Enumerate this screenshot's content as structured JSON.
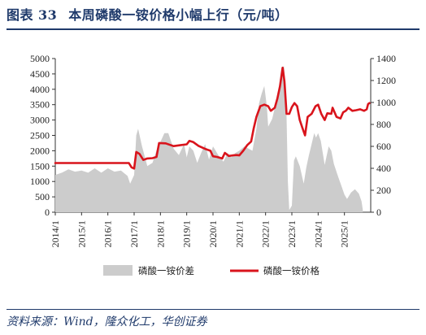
{
  "figure": {
    "label": "图表",
    "number": "33",
    "title": "本周磷酸一铵价格小幅上行（元/吨）"
  },
  "source": "资料来源：Wind，隆众化工，华创证券",
  "chart_data": {
    "type": "area",
    "title": "本周磷酸一铵价格小幅上行（元/吨）",
    "y_left": {
      "min": 0,
      "max": 5000,
      "ticks": [
        "0",
        "500",
        "1000",
        "1500",
        "2000",
        "2500",
        "3000",
        "3500",
        "4000",
        "4500",
        "5000"
      ]
    },
    "y_right": {
      "min": 0,
      "max": 1400,
      "ticks": [
        "0",
        "200",
        "400",
        "600",
        "800",
        "1000",
        "1200",
        "1400"
      ]
    },
    "x_ticks": [
      "2014/1",
      "2015/1",
      "2016/1",
      "2017/1",
      "2018/1",
      "2019/1",
      "2020/1",
      "2021/1",
      "2022/1",
      "2023/1",
      "2024/1",
      "2025/1"
    ],
    "x_range": [
      2014.0,
      2026.0
    ],
    "legend_position": "bottom",
    "series": [
      {
        "name": "磷酸一铵价差",
        "type": "area",
        "axis": "right",
        "color": "#cccccc",
        "points": [
          [
            2014.0,
            340
          ],
          [
            2014.25,
            360
          ],
          [
            2014.5,
            390
          ],
          [
            2014.75,
            370
          ],
          [
            2015.0,
            380
          ],
          [
            2015.25,
            360
          ],
          [
            2015.5,
            400
          ],
          [
            2015.75,
            360
          ],
          [
            2016.0,
            400
          ],
          [
            2016.25,
            370
          ],
          [
            2016.5,
            380
          ],
          [
            2016.75,
            330
          ],
          [
            2016.85,
            260
          ],
          [
            2017.0,
            340
          ],
          [
            2017.08,
            700
          ],
          [
            2017.15,
            760
          ],
          [
            2017.3,
            600
          ],
          [
            2017.5,
            420
          ],
          [
            2017.7,
            450
          ],
          [
            2017.9,
            600
          ],
          [
            2018.0,
            640
          ],
          [
            2018.15,
            720
          ],
          [
            2018.3,
            720
          ],
          [
            2018.5,
            580
          ],
          [
            2018.7,
            520
          ],
          [
            2018.9,
            620
          ],
          [
            2019.0,
            500
          ],
          [
            2019.1,
            600
          ],
          [
            2019.25,
            560
          ],
          [
            2019.4,
            450
          ],
          [
            2019.55,
            540
          ],
          [
            2019.7,
            620
          ],
          [
            2019.85,
            480
          ],
          [
            2020.0,
            600
          ],
          [
            2020.2,
            520
          ],
          [
            2020.4,
            460
          ],
          [
            2020.55,
            540
          ],
          [
            2020.7,
            500
          ],
          [
            2020.85,
            540
          ],
          [
            2021.0,
            560
          ],
          [
            2021.2,
            600
          ],
          [
            2021.35,
            580
          ],
          [
            2021.5,
            560
          ],
          [
            2021.65,
            760
          ],
          [
            2021.75,
            990
          ],
          [
            2021.85,
            1080
          ],
          [
            2021.95,
            1150
          ],
          [
            2022.05,
            960
          ],
          [
            2022.1,
            780
          ],
          [
            2022.25,
            850
          ],
          [
            2022.4,
            1000
          ],
          [
            2022.5,
            1120
          ],
          [
            2022.6,
            1320
          ],
          [
            2022.7,
            1330
          ],
          [
            2022.78,
            1080
          ],
          [
            2022.85,
            280
          ],
          [
            2022.9,
            20
          ],
          [
            2023.0,
            60
          ],
          [
            2023.08,
            470
          ],
          [
            2023.15,
            510
          ],
          [
            2023.3,
            420
          ],
          [
            2023.45,
            260
          ],
          [
            2023.55,
            410
          ],
          [
            2023.65,
            520
          ],
          [
            2023.75,
            620
          ],
          [
            2023.85,
            720
          ],
          [
            2023.92,
            680
          ],
          [
            2024.0,
            720
          ],
          [
            2024.1,
            650
          ],
          [
            2024.25,
            430
          ],
          [
            2024.4,
            600
          ],
          [
            2024.5,
            560
          ],
          [
            2024.6,
            440
          ],
          [
            2024.75,
            330
          ],
          [
            2024.9,
            230
          ],
          [
            2025.0,
            160
          ],
          [
            2025.1,
            120
          ],
          [
            2025.25,
            180
          ],
          [
            2025.4,
            210
          ],
          [
            2025.55,
            170
          ],
          [
            2025.65,
            100
          ],
          [
            2025.7,
            20
          ]
        ]
      },
      {
        "name": "磷酸一铵价格",
        "type": "line",
        "axis": "left",
        "color": "#d9141c",
        "points": [
          [
            2014.0,
            1600
          ],
          [
            2016.8,
            1600
          ],
          [
            2016.9,
            1460
          ],
          [
            2017.0,
            1420
          ],
          [
            2017.08,
            1960
          ],
          [
            2017.2,
            1900
          ],
          [
            2017.35,
            1700
          ],
          [
            2017.5,
            1750
          ],
          [
            2017.7,
            1760
          ],
          [
            2017.85,
            1800
          ],
          [
            2017.95,
            2250
          ],
          [
            2018.2,
            2240
          ],
          [
            2018.5,
            2150
          ],
          [
            2018.75,
            2180
          ],
          [
            2019.0,
            2210
          ],
          [
            2019.1,
            2320
          ],
          [
            2019.25,
            2280
          ],
          [
            2019.45,
            2160
          ],
          [
            2019.7,
            2060
          ],
          [
            2019.9,
            2000
          ],
          [
            2020.0,
            1820
          ],
          [
            2020.15,
            1800
          ],
          [
            2020.35,
            1750
          ],
          [
            2020.45,
            1930
          ],
          [
            2020.6,
            1830
          ],
          [
            2020.75,
            1850
          ],
          [
            2020.9,
            1860
          ],
          [
            2021.0,
            1850
          ],
          [
            2021.15,
            2000
          ],
          [
            2021.3,
            2180
          ],
          [
            2021.45,
            2300
          ],
          [
            2021.55,
            2730
          ],
          [
            2021.65,
            3100
          ],
          [
            2021.8,
            3450
          ],
          [
            2021.95,
            3500
          ],
          [
            2022.1,
            3450
          ],
          [
            2022.2,
            3300
          ],
          [
            2022.35,
            3400
          ],
          [
            2022.45,
            3700
          ],
          [
            2022.55,
            4100
          ],
          [
            2022.65,
            4700
          ],
          [
            2022.72,
            4250
          ],
          [
            2022.8,
            3200
          ],
          [
            2022.9,
            3200
          ],
          [
            2023.0,
            3420
          ],
          [
            2023.1,
            3550
          ],
          [
            2023.2,
            3450
          ],
          [
            2023.3,
            3000
          ],
          [
            2023.4,
            2750
          ],
          [
            2023.5,
            2500
          ],
          [
            2023.6,
            3100
          ],
          [
            2023.75,
            3200
          ],
          [
            2023.9,
            3450
          ],
          [
            2024.0,
            3500
          ],
          [
            2024.12,
            3200
          ],
          [
            2024.25,
            3000
          ],
          [
            2024.35,
            3220
          ],
          [
            2024.5,
            3200
          ],
          [
            2024.55,
            3400
          ],
          [
            2024.7,
            3100
          ],
          [
            2024.85,
            3050
          ],
          [
            2024.95,
            3250
          ],
          [
            2025.05,
            3300
          ],
          [
            2025.15,
            3400
          ],
          [
            2025.3,
            3300
          ],
          [
            2025.45,
            3320
          ],
          [
            2025.6,
            3350
          ],
          [
            2025.75,
            3300
          ],
          [
            2025.85,
            3350
          ],
          [
            2025.9,
            3520
          ],
          [
            2025.95,
            3550
          ]
        ]
      }
    ]
  }
}
